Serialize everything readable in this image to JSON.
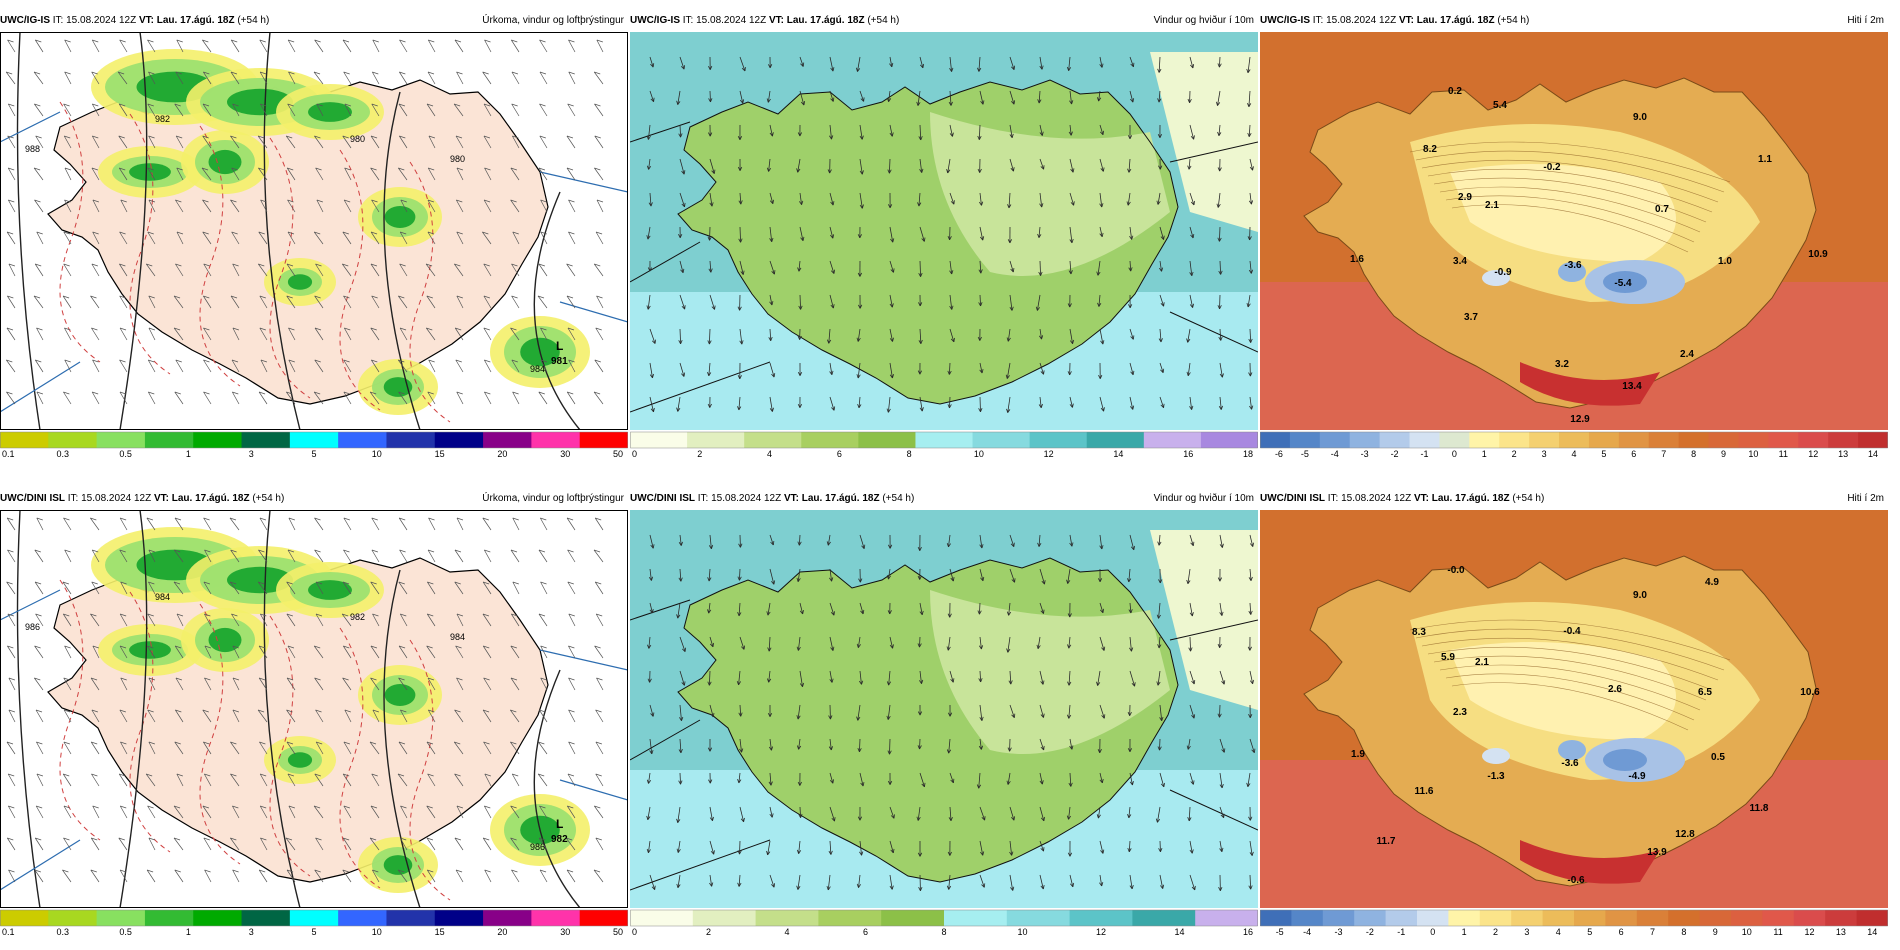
{
  "panels": [
    {
      "model": "UWC/IG-IS",
      "it_label": "IT:",
      "it_value": "15.08.2024 12Z",
      "vt_label": "VT:",
      "vt_value": "Lau. 17.ágú. 18Z",
      "lead": "(+54 h)",
      "title": "Úrkoma, vindur og loftþrýstingur",
      "kind": "precip",
      "low": {
        "letter": "L",
        "value": "981"
      },
      "isobars": [
        "988",
        "982",
        "980",
        "980",
        "984"
      ],
      "colorbar": {
        "ticks": [
          "0.1",
          "0.3",
          "0.5",
          "1",
          "3",
          "5",
          "10",
          "15",
          "20",
          "30",
          "50"
        ],
        "colors": [
          "#cccc00",
          "#a8d820",
          "#88e060",
          "#33bb33",
          "#00aa00",
          "#006644",
          "#00ffff",
          "#3366ff",
          "#2233aa",
          "#000088",
          "#880088",
          "#ff33aa",
          "#ff0000"
        ]
      }
    },
    {
      "model": "UWC/IG-IS",
      "it_label": "IT:",
      "it_value": "15.08.2024 12Z",
      "vt_label": "VT:",
      "vt_value": "Lau. 17.ágú. 18Z",
      "lead": "(+54 h)",
      "title": "Vindur og hviður í 10m",
      "kind": "wind",
      "colorbar": {
        "ticks": [
          "0",
          "2",
          "4",
          "6",
          "8",
          "10",
          "12",
          "14",
          "16",
          "18"
        ],
        "colors": [
          "#fafde8",
          "#e2efc0",
          "#c4df8a",
          "#a8cf60",
          "#8cc048",
          "#a6eef0",
          "#86dadf",
          "#5cc4c8",
          "#3aa8a8",
          "#c8b0ec",
          "#a888e0"
        ]
      }
    },
    {
      "model": "UWC/IG-IS",
      "it_label": "IT:",
      "it_value": "15.08.2024 12Z",
      "vt_label": "VT:",
      "vt_value": "Lau. 17.ágú. 18Z",
      "lead": "(+54 h)",
      "title": "Hiti í 2m",
      "kind": "temp",
      "values": [
        "0.2",
        "5.4",
        "9.0",
        "8.2",
        "-0.2",
        "1.1",
        "2.9",
        "2.1",
        "0.7",
        "1.6",
        "3.4",
        "-0.9",
        "-3.6",
        "-5.4",
        "1.0",
        "10.9",
        "3.7",
        "2.4",
        "3.2",
        "13.4",
        "12.9"
      ],
      "colorbar": {
        "ticks": [
          "-6",
          "-5",
          "-4",
          "-3",
          "-2",
          "-1",
          "0",
          "1",
          "2",
          "3",
          "4",
          "5",
          "6",
          "7",
          "8",
          "9",
          "10",
          "11",
          "12",
          "13",
          "14"
        ],
        "colors": [
          "#3f6fb8",
          "#5586c8",
          "#6f9ad4",
          "#8fb3e0",
          "#b3cbea",
          "#d4e2f2",
          "#dde8d0",
          "#fff4a8",
          "#fbe48a",
          "#f4d070",
          "#ecbc5a",
          "#e6a84c",
          "#e09444",
          "#da8038",
          "#d4702c",
          "#d86838",
          "#dc6040",
          "#e0584a",
          "#da4c4c",
          "#cc3c3c",
          "#c02e2e"
        ]
      }
    },
    {
      "model": "UWC/DINI ISL",
      "it_label": "IT:",
      "it_value": "15.08.2024 12Z",
      "vt_label": "VT:",
      "vt_value": "Lau. 17.ágú. 18Z",
      "lead": "(+54 h)",
      "title": "Úrkoma, vindur og loftþrýstingur",
      "kind": "precip",
      "low": {
        "letter": "L",
        "value": "982"
      },
      "isobars": [
        "986",
        "984",
        "982",
        "984",
        "986"
      ],
      "colorbar": {
        "ticks": [
          "0.1",
          "0.3",
          "0.5",
          "1",
          "3",
          "5",
          "10",
          "15",
          "20",
          "30",
          "50"
        ],
        "colors": [
          "#cccc00",
          "#a8d820",
          "#88e060",
          "#33bb33",
          "#00aa00",
          "#006644",
          "#00ffff",
          "#3366ff",
          "#2233aa",
          "#000088",
          "#880088",
          "#ff33aa",
          "#ff0000"
        ]
      }
    },
    {
      "model": "UWC/DINI ISL",
      "it_label": "IT:",
      "it_value": "15.08.2024 12Z",
      "vt_label": "VT:",
      "vt_value": "Lau. 17.ágú. 18Z",
      "lead": "(+54 h)",
      "title": "Vindur og hviður í 10m",
      "kind": "wind",
      "colorbar": {
        "ticks": [
          "0",
          "2",
          "4",
          "6",
          "8",
          "10",
          "12",
          "14",
          "16"
        ],
        "colors": [
          "#fafde8",
          "#e2efc0",
          "#c4df8a",
          "#a8cf60",
          "#8cc048",
          "#a6eef0",
          "#86dadf",
          "#5cc4c8",
          "#3aa8a8",
          "#c8b0ec"
        ]
      }
    },
    {
      "model": "UWC/DINI ISL",
      "it_label": "IT:",
      "it_value": "15.08.2024 12Z",
      "vt_label": "VT:",
      "vt_value": "Lau. 17.ágú. 18Z",
      "lead": "(+54 h)",
      "title": "Hiti í 2m",
      "kind": "temp",
      "values": [
        "-0.0",
        "4.9",
        "9.0",
        "8.3",
        "-0.4",
        "5.9",
        "2.1",
        "2.6",
        "6.5",
        "10.6",
        "2.3",
        "1.9",
        "-1.3",
        "-3.6",
        "-4.9",
        "0.5",
        "11.6",
        "11.8",
        "12.8",
        "11.7",
        "13.9",
        "-0.6"
      ],
      "colorbar": {
        "ticks": [
          "-5",
          "-4",
          "-3",
          "-2",
          "-1",
          "0",
          "1",
          "2",
          "3",
          "4",
          "5",
          "6",
          "7",
          "8",
          "9",
          "10",
          "11",
          "12",
          "13",
          "14"
        ],
        "colors": [
          "#3f6fb8",
          "#5586c8",
          "#6f9ad4",
          "#8fb3e0",
          "#b3cbea",
          "#d4e2f2",
          "#fff4a8",
          "#fbe48a",
          "#f4d070",
          "#ecbc5a",
          "#e6a84c",
          "#e09444",
          "#da8038",
          "#d4702c",
          "#d86838",
          "#dc6040",
          "#e0584a",
          "#da4c4c",
          "#cc3c3c",
          "#c02e2e"
        ]
      }
    }
  ]
}
